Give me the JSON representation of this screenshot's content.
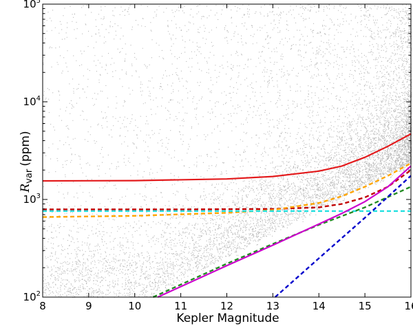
{
  "chart_data": {
    "type": "scatter",
    "title": "",
    "xlabel": "Kepler Magnitude",
    "ylabel": {
      "symbol": "R",
      "subscript": "var",
      "unit": "(ppm)"
    },
    "xlim": [
      8,
      16
    ],
    "ylim": [
      100,
      100000
    ],
    "yscale": "log",
    "x_ticks": [
      "8",
      "9",
      "10",
      "11",
      "12",
      "13",
      "14",
      "15",
      "16"
    ],
    "y_ticks": [
      {
        "value": 100,
        "base": "10",
        "exp": "2"
      },
      {
        "value": 1000,
        "base": "10",
        "exp": "3"
      },
      {
        "value": 10000,
        "base": "10",
        "exp": "4"
      },
      {
        "value": 100000,
        "base": "10",
        "exp": "5"
      }
    ],
    "grid": false,
    "legend": "none",
    "scatter_color": "#000000",
    "series": [
      {
        "color": "#e31a1c",
        "style": "solid",
        "x": [
          8,
          10,
          12,
          13,
          14,
          14.5,
          15,
          15.5,
          16
        ],
        "y": [
          1550,
          1560,
          1620,
          1720,
          1950,
          2200,
          2700,
          3500,
          4700
        ]
      },
      {
        "color": "#c00000",
        "style": "dashed",
        "x": [
          8,
          11,
          13,
          14,
          14.5,
          15,
          15.5,
          16
        ],
        "y": [
          790,
          790,
          800,
          830,
          900,
          1050,
          1350,
          2000
        ]
      },
      {
        "color": "#ffa500",
        "style": "dashed",
        "x": [
          8,
          10,
          12,
          13,
          14,
          14.5,
          15,
          15.5,
          16
        ],
        "y": [
          660,
          680,
          730,
          780,
          920,
          1080,
          1350,
          1750,
          2350
        ]
      },
      {
        "color": "#22e0e0",
        "style": "dashed",
        "x": [
          8,
          16
        ],
        "y": [
          760,
          760
        ]
      },
      {
        "color": "#228b22",
        "style": "dashed",
        "x": [
          10.4,
          12,
          13,
          14,
          15,
          16
        ],
        "y": [
          100,
          220,
          350,
          550,
          830,
          1350
        ]
      },
      {
        "color": "#0000cc",
        "style": "dashed",
        "x": [
          13.05,
          14,
          15,
          16
        ],
        "y": [
          100,
          250,
          650,
          1750
        ]
      },
      {
        "color": "#cc00cc",
        "style": "solid",
        "x": [
          10.5,
          12,
          13,
          14,
          14.5,
          15,
          15.5,
          16
        ],
        "y": [
          100,
          210,
          340,
          560,
          720,
          950,
          1350,
          2200
        ]
      }
    ]
  }
}
